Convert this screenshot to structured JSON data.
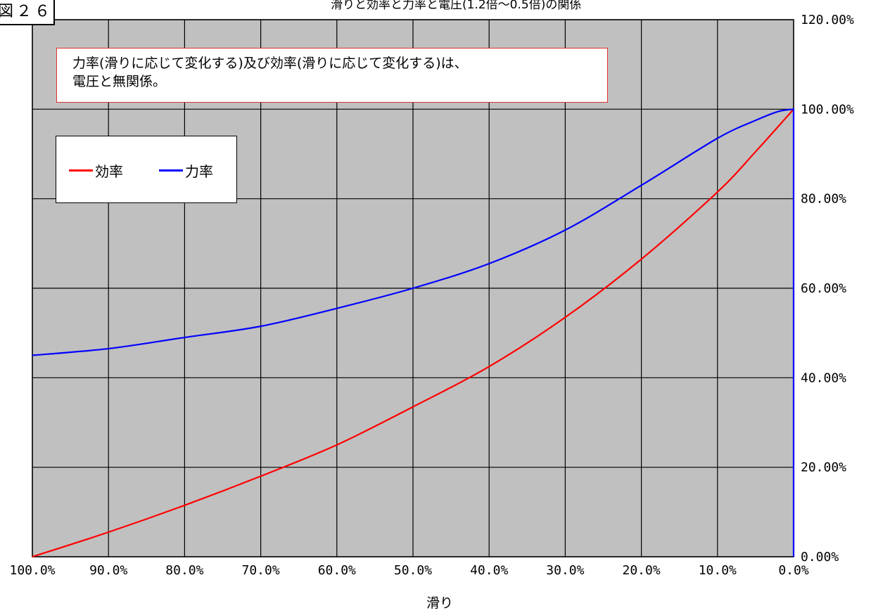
{
  "figure_label": "図２６",
  "note": {
    "line1": "力率(滑りに応じて変化する)及び効率(滑りに応じて変化する)は、",
    "line2": "電圧と無関係。"
  },
  "colors": {
    "plot_bg": "#c0c0c0",
    "efficiency": "#ff0000",
    "power_factor": "#0000ff",
    "grid": "#000000"
  },
  "chart_data": {
    "type": "line",
    "title": "滑りと効率と力率と電圧(1.2倍〜0.5倍)の関係",
    "xlabel": "滑り",
    "ylabel": "",
    "x_reversed": true,
    "xlim": [
      100,
      0
    ],
    "ylim": [
      0,
      120
    ],
    "x_ticks": [
      "100.0%",
      "90.0%",
      "80.0%",
      "70.0%",
      "60.0%",
      "50.0%",
      "40.0%",
      "30.0%",
      "20.0%",
      "10.0%",
      "0.0%"
    ],
    "y_ticks": [
      "0.00%",
      "20.00%",
      "40.00%",
      "60.00%",
      "80.00%",
      "100.00%",
      "120.00%"
    ],
    "grid": true,
    "legend_position": "top-left",
    "series": [
      {
        "name": "効率",
        "x": [
          100,
          90,
          80,
          70,
          60,
          50,
          40,
          30,
          20,
          10,
          5,
          0
        ],
        "values": [
          0,
          5.5,
          11.5,
          18,
          25,
          33.5,
          42.5,
          53.5,
          66.5,
          81.5,
          90.5,
          100
        ]
      },
      {
        "name": "力率",
        "x": [
          100,
          90,
          80,
          70,
          60,
          50,
          40,
          30,
          20,
          10,
          5,
          2,
          0,
          0
        ],
        "values": [
          45,
          46.5,
          49,
          51.5,
          55.5,
          60,
          65.5,
          73,
          83,
          93.5,
          97.5,
          99.5,
          100,
          0
        ]
      }
    ]
  }
}
